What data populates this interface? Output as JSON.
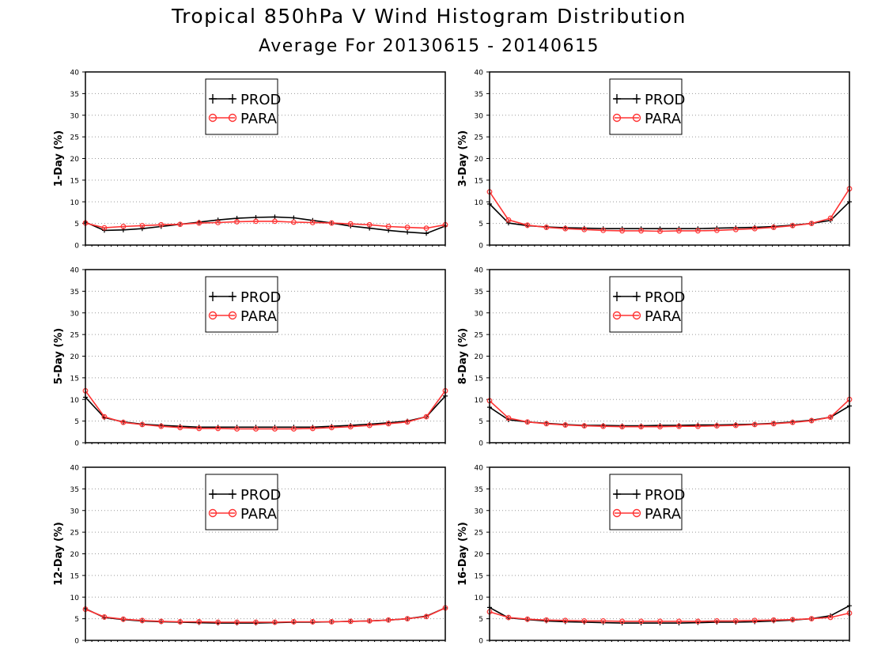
{
  "title": "Tropical 850hPa V Wind Histogram Distribution",
  "subtitle": "Average For 20130615 - 20140615",
  "chart_data": [
    {
      "type": "line",
      "ylabel": "1-Day (%)",
      "ylim": [
        0,
        40
      ],
      "yticks": [
        0,
        5,
        10,
        15,
        20,
        25,
        30,
        35,
        40
      ],
      "grid": true,
      "legend": "top-left",
      "series": [
        {
          "name": "PROD",
          "color": "#000000",
          "marker": "plus",
          "values": [
            5.3,
            3.4,
            3.5,
            3.8,
            4.3,
            4.8,
            5.3,
            5.8,
            6.2,
            6.4,
            6.5,
            6.3,
            5.7,
            5.1,
            4.4,
            3.9,
            3.4,
            3.0,
            2.7,
            4.4
          ]
        },
        {
          "name": "PARA",
          "color": "#ff3333",
          "marker": "circle",
          "values": [
            5.1,
            4.0,
            4.3,
            4.5,
            4.7,
            4.8,
            5.1,
            5.2,
            5.4,
            5.5,
            5.5,
            5.3,
            5.2,
            5.1,
            4.9,
            4.7,
            4.3,
            4.1,
            3.9,
            4.7
          ]
        }
      ]
    },
    {
      "type": "line",
      "ylabel": "3-Day (%)",
      "ylim": [
        0,
        40
      ],
      "yticks": [
        0,
        5,
        10,
        15,
        20,
        25,
        30,
        35,
        40
      ],
      "grid": true,
      "legend": "top-left",
      "series": [
        {
          "name": "PROD",
          "color": "#000000",
          "marker": "plus",
          "values": [
            9.5,
            5.1,
            4.5,
            4.2,
            4.0,
            3.9,
            3.8,
            3.8,
            3.8,
            3.8,
            3.8,
            3.8,
            3.9,
            4.0,
            4.1,
            4.3,
            4.6,
            5.0,
            5.7,
            10.0
          ]
        },
        {
          "name": "PARA",
          "color": "#ff3333",
          "marker": "circle",
          "values": [
            12.3,
            5.8,
            4.6,
            4.1,
            3.8,
            3.6,
            3.4,
            3.3,
            3.3,
            3.2,
            3.3,
            3.3,
            3.4,
            3.6,
            3.8,
            4.1,
            4.5,
            5.0,
            6.2,
            13.0
          ]
        }
      ]
    },
    {
      "type": "line",
      "ylabel": "5-Day (%)",
      "ylim": [
        0,
        40
      ],
      "yticks": [
        0,
        5,
        10,
        15,
        20,
        25,
        30,
        35,
        40
      ],
      "grid": true,
      "legend": "top-left",
      "series": [
        {
          "name": "PROD",
          "color": "#000000",
          "marker": "plus",
          "values": [
            10.5,
            5.8,
            4.8,
            4.3,
            4.0,
            3.8,
            3.6,
            3.6,
            3.6,
            3.6,
            3.6,
            3.6,
            3.6,
            3.8,
            4.0,
            4.3,
            4.6,
            5.0,
            6.0,
            10.8
          ]
        },
        {
          "name": "PARA",
          "color": "#ff3333",
          "marker": "circle",
          "values": [
            12.0,
            6.0,
            4.7,
            4.2,
            3.8,
            3.5,
            3.3,
            3.3,
            3.2,
            3.2,
            3.2,
            3.2,
            3.3,
            3.5,
            3.7,
            4.0,
            4.4,
            4.8,
            6.0,
            12.0
          ]
        }
      ]
    },
    {
      "type": "line",
      "ylabel": "8-Day (%)",
      "ylim": [
        0,
        40
      ],
      "yticks": [
        0,
        5,
        10,
        15,
        20,
        25,
        30,
        35,
        40
      ],
      "grid": true,
      "legend": "top-left",
      "series": [
        {
          "name": "PROD",
          "color": "#000000",
          "marker": "plus",
          "values": [
            8.2,
            5.3,
            4.8,
            4.5,
            4.2,
            4.0,
            4.0,
            3.9,
            3.9,
            4.0,
            4.0,
            4.1,
            4.1,
            4.2,
            4.3,
            4.5,
            4.8,
            5.2,
            5.9,
            8.5
          ]
        },
        {
          "name": "PARA",
          "color": "#ff3333",
          "marker": "circle",
          "values": [
            9.7,
            5.7,
            4.8,
            4.4,
            4.1,
            3.9,
            3.8,
            3.7,
            3.7,
            3.7,
            3.8,
            3.8,
            3.9,
            4.0,
            4.2,
            4.4,
            4.7,
            5.1,
            5.9,
            10.0
          ]
        }
      ]
    },
    {
      "type": "line",
      "ylabel": "12-Day (%)",
      "ylim": [
        0,
        40
      ],
      "yticks": [
        0,
        5,
        10,
        15,
        20,
        25,
        30,
        35,
        40
      ],
      "grid": true,
      "legend": "top-left",
      "series": [
        {
          "name": "PROD",
          "color": "#000000",
          "marker": "plus",
          "values": [
            7.3,
            5.3,
            4.8,
            4.5,
            4.3,
            4.2,
            4.1,
            4.0,
            4.0,
            4.0,
            4.1,
            4.2,
            4.2,
            4.3,
            4.4,
            4.5,
            4.7,
            5.0,
            5.6,
            7.5
          ]
        },
        {
          "name": "PARA",
          "color": "#ff3333",
          "marker": "circle",
          "values": [
            7.2,
            5.4,
            4.9,
            4.6,
            4.4,
            4.3,
            4.3,
            4.2,
            4.2,
            4.2,
            4.2,
            4.3,
            4.3,
            4.3,
            4.4,
            4.5,
            4.7,
            5.0,
            5.5,
            7.5
          ]
        }
      ]
    },
    {
      "type": "line",
      "ylabel": "16-Day (%)",
      "ylim": [
        0,
        40
      ],
      "yticks": [
        0,
        5,
        10,
        15,
        20,
        25,
        30,
        35,
        40
      ],
      "grid": true,
      "legend": "top-left",
      "series": [
        {
          "name": "PROD",
          "color": "#000000",
          "marker": "plus",
          "values": [
            7.6,
            5.2,
            4.8,
            4.5,
            4.3,
            4.2,
            4.1,
            4.0,
            4.0,
            4.0,
            4.0,
            4.1,
            4.2,
            4.2,
            4.3,
            4.5,
            4.7,
            5.0,
            5.7,
            8.0
          ]
        },
        {
          "name": "PARA",
          "color": "#ff3333",
          "marker": "circle",
          "values": [
            6.6,
            5.3,
            4.9,
            4.7,
            4.6,
            4.5,
            4.5,
            4.4,
            4.4,
            4.4,
            4.4,
            4.4,
            4.5,
            4.5,
            4.6,
            4.7,
            4.8,
            5.0,
            5.3,
            6.3
          ]
        }
      ]
    }
  ]
}
